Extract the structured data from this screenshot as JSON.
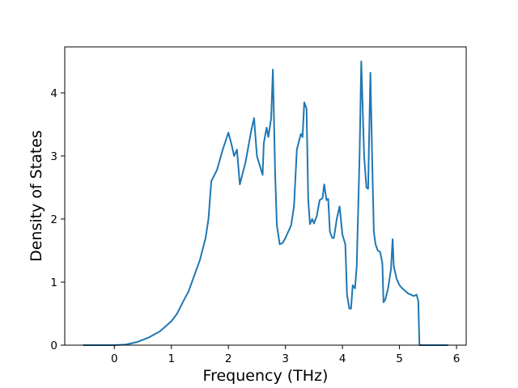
{
  "chart_data": {
    "type": "line",
    "xlabel": "Frequency (THz)",
    "ylabel": "Density of States",
    "color": "#1f77b4",
    "x": [
      -0.55,
      0.0,
      0.2,
      0.4,
      0.6,
      0.8,
      0.9,
      1.0,
      1.1,
      1.2,
      1.3,
      1.4,
      1.5,
      1.6,
      1.65,
      1.7,
      1.8,
      1.9,
      2.0,
      2.05,
      2.1,
      2.15,
      2.2,
      2.3,
      2.4,
      2.45,
      2.5,
      2.6,
      2.62,
      2.67,
      2.7,
      2.75,
      2.78,
      2.82,
      2.85,
      2.9,
      2.95,
      3.0,
      3.1,
      3.15,
      3.2,
      3.27,
      3.3,
      3.33,
      3.37,
      3.4,
      3.43,
      3.47,
      3.5,
      3.55,
      3.6,
      3.65,
      3.68,
      3.72,
      3.75,
      3.78,
      3.82,
      3.85,
      3.9,
      3.95,
      4.0,
      4.05,
      4.08,
      4.12,
      4.15,
      4.18,
      4.22,
      4.25,
      4.3,
      4.33,
      4.38,
      4.42,
      4.45,
      4.49,
      4.52,
      4.55,
      4.58,
      4.62,
      4.66,
      4.7,
      4.72,
      4.75,
      4.8,
      4.85,
      4.88,
      4.9,
      4.95,
      5.0,
      5.05,
      5.1,
      5.15,
      5.2,
      5.25,
      5.3,
      5.33,
      5.35,
      5.85
    ],
    "values": [
      0,
      0,
      0.01,
      0.05,
      0.12,
      0.22,
      0.3,
      0.38,
      0.5,
      0.68,
      0.85,
      1.1,
      1.35,
      1.7,
      2.0,
      2.6,
      2.78,
      3.1,
      3.37,
      3.2,
      3.0,
      3.1,
      2.55,
      2.9,
      3.4,
      3.6,
      3.0,
      2.7,
      3.2,
      3.45,
      3.3,
      3.6,
      4.37,
      2.7,
      1.9,
      1.6,
      1.62,
      1.7,
      1.9,
      2.2,
      3.1,
      3.35,
      3.3,
      3.85,
      3.75,
      2.3,
      1.92,
      2.0,
      1.93,
      2.05,
      2.3,
      2.33,
      2.55,
      2.3,
      2.32,
      1.8,
      1.7,
      1.7,
      2.0,
      2.2,
      1.75,
      1.6,
      0.8,
      0.58,
      0.58,
      0.95,
      0.9,
      1.25,
      3.0,
      4.5,
      3.0,
      2.5,
      2.48,
      4.32,
      3.0,
      1.8,
      1.6,
      1.5,
      1.48,
      1.3,
      0.68,
      0.72,
      0.9,
      1.2,
      1.68,
      1.25,
      1.05,
      0.95,
      0.9,
      0.86,
      0.82,
      0.8,
      0.78,
      0.8,
      0.7,
      0,
      0
    ],
    "xlim": [
      -0.87,
      6.17
    ],
    "ylim": [
      0,
      4.73
    ],
    "xticks": [
      0,
      1,
      2,
      3,
      4,
      5,
      6
    ],
    "yticks": [
      0,
      1,
      2,
      3,
      4
    ]
  }
}
